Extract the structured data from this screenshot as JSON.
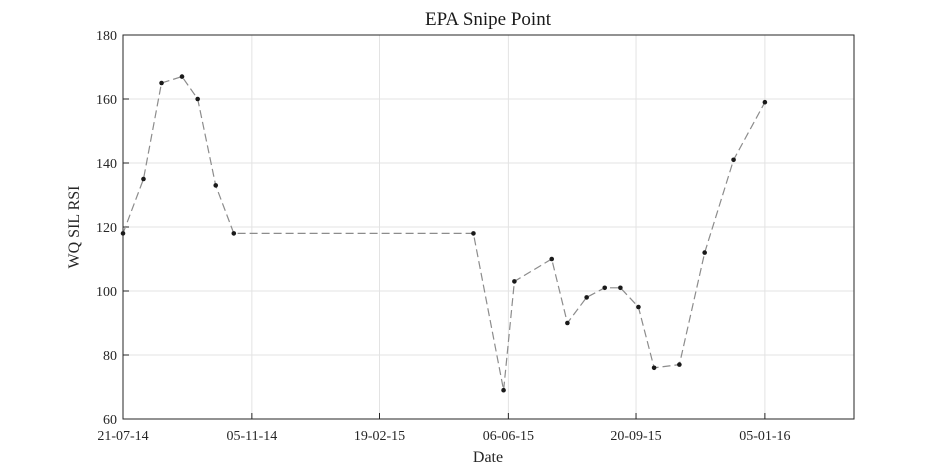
{
  "chart_data": {
    "type": "line",
    "title": "EPA Snipe Point",
    "xlabel": "Date",
    "ylabel": "WQ SIL RSI",
    "ylim": [
      60,
      180
    ],
    "yticks": [
      60,
      80,
      100,
      120,
      140,
      160,
      180
    ],
    "xlim": [
      "2014-07-21",
      "2016-03-19"
    ],
    "xticks": [
      {
        "date": "2014-07-21",
        "label": "21-07-14"
      },
      {
        "date": "2014-11-05",
        "label": "05-11-14"
      },
      {
        "date": "2015-02-19",
        "label": "19-02-15"
      },
      {
        "date": "2015-06-06",
        "label": "06-06-15"
      },
      {
        "date": "2015-09-20",
        "label": "20-09-15"
      },
      {
        "date": "2016-01-05",
        "label": "05-01-16"
      }
    ],
    "grid": true,
    "line_style": "dashed",
    "line_color": "#8c8c8c",
    "marker_color": "#1a1a1a",
    "series": [
      {
        "x": [
          "2014-07-21",
          "2014-08-07",
          "2014-08-22",
          "2014-09-08",
          "2014-09-21",
          "2014-10-06",
          "2014-10-21",
          "2015-05-08",
          "2015-06-02",
          "2015-06-11",
          "2015-07-12",
          "2015-07-25",
          "2015-08-10",
          "2015-08-25",
          "2015-09-07",
          "2015-09-22",
          "2015-10-05",
          "2015-10-26",
          "2015-11-16",
          "2015-12-10",
          "2016-01-05"
        ],
        "y": [
          118,
          135,
          165,
          167,
          160,
          133,
          118,
          118,
          69,
          103,
          110,
          90,
          98,
          101,
          101,
          95,
          76,
          77,
          112,
          141,
          159
        ]
      }
    ]
  }
}
